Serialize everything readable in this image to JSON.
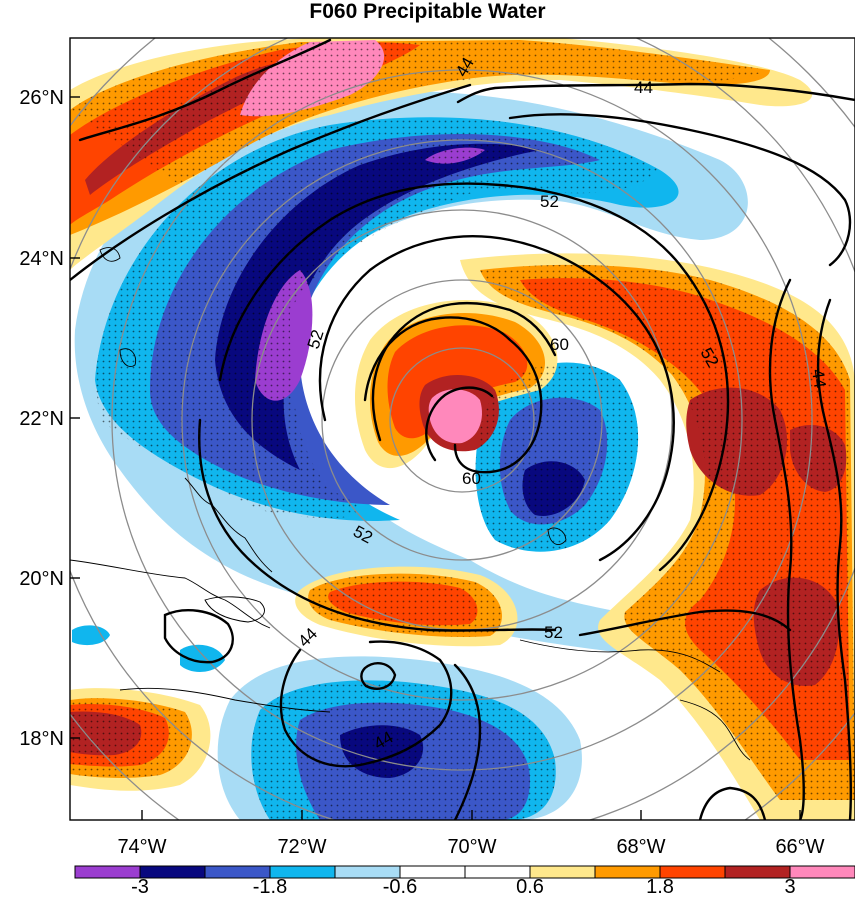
{
  "title": "F060 Precipitable Water",
  "lat_labels": [
    "26°N",
    "24°N",
    "22°N",
    "20°N",
    "18°N"
  ],
  "lon_labels": [
    "74°W",
    "72°W",
    "70°W",
    "68°W",
    "66°W"
  ],
  "colorbar": {
    "colors": [
      "#9b3dd0",
      "#08087e",
      "#3b57c8",
      "#10b6ee",
      "#a8dcf5",
      "#ffffff",
      "#ffffff",
      "#ffe88c",
      "#ff9a00",
      "#ff4400",
      "#b22222",
      "#ff88bb"
    ],
    "labels": [
      "-3",
      "-1.8",
      "-0.6",
      "0.6",
      "1.8",
      "3"
    ]
  },
  "contour_labels": [
    "44",
    "44",
    "52",
    "52",
    "60",
    "60",
    "52",
    "52",
    "52",
    "44",
    "44",
    "44"
  ]
}
